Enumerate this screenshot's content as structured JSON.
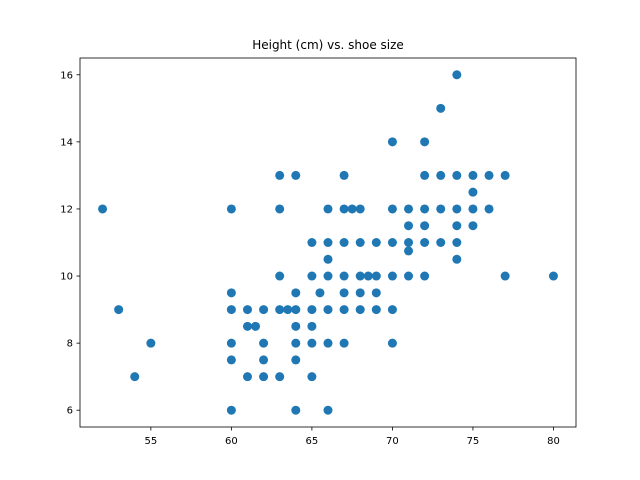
{
  "chart_data": {
    "type": "scatter",
    "title": "Height (cm) vs. shoe size",
    "xlabel": "",
    "ylabel": "",
    "xlim": [
      50.6,
      81.4
    ],
    "ylim": [
      5.5,
      16.5
    ],
    "xticks": [
      55,
      60,
      65,
      70,
      75,
      80
    ],
    "yticks": [
      6,
      8,
      10,
      12,
      14,
      16
    ],
    "grid": false,
    "marker_color": "#1f77b4",
    "points": [
      [
        52,
        12
      ],
      [
        53,
        9
      ],
      [
        54,
        7
      ],
      [
        55,
        8
      ],
      [
        60,
        12
      ],
      [
        60,
        9.5
      ],
      [
        60,
        9
      ],
      [
        60,
        8
      ],
      [
        60,
        7.5
      ],
      [
        60,
        6
      ],
      [
        61,
        9
      ],
      [
        61,
        8.5
      ],
      [
        61,
        7
      ],
      [
        61.5,
        8.5
      ],
      [
        62,
        9
      ],
      [
        62,
        8
      ],
      [
        62,
        7.5
      ],
      [
        62,
        7
      ],
      [
        63,
        13
      ],
      [
        63,
        12
      ],
      [
        63,
        10
      ],
      [
        63,
        9
      ],
      [
        63,
        7
      ],
      [
        63.5,
        9
      ],
      [
        64,
        13
      ],
      [
        64,
        9.5
      ],
      [
        64,
        9
      ],
      [
        64,
        8.5
      ],
      [
        64,
        8
      ],
      [
        64,
        7.5
      ],
      [
        64,
        6
      ],
      [
        65,
        11
      ],
      [
        65,
        10
      ],
      [
        65,
        9
      ],
      [
        65,
        8.5
      ],
      [
        65,
        8
      ],
      [
        65,
        7
      ],
      [
        65.5,
        9.5
      ],
      [
        66,
        12
      ],
      [
        66,
        11
      ],
      [
        66,
        10.5
      ],
      [
        66,
        10
      ],
      [
        66,
        9
      ],
      [
        66,
        8
      ],
      [
        66,
        6
      ],
      [
        67,
        13
      ],
      [
        67,
        12
      ],
      [
        67,
        11
      ],
      [
        67,
        10
      ],
      [
        67,
        9.5
      ],
      [
        67,
        9
      ],
      [
        67,
        8
      ],
      [
        67.5,
        12
      ],
      [
        68,
        12
      ],
      [
        68,
        11
      ],
      [
        68,
        10
      ],
      [
        68,
        9.5
      ],
      [
        68,
        9
      ],
      [
        68.5,
        10
      ],
      [
        69,
        11
      ],
      [
        69,
        10
      ],
      [
        69,
        9.5
      ],
      [
        69,
        9
      ],
      [
        70,
        14
      ],
      [
        70,
        12
      ],
      [
        70,
        11
      ],
      [
        70,
        10
      ],
      [
        70,
        9
      ],
      [
        70,
        8
      ],
      [
        71,
        12
      ],
      [
        71,
        11.5
      ],
      [
        71,
        11
      ],
      [
        71,
        10.75
      ],
      [
        71,
        10
      ],
      [
        72,
        14
      ],
      [
        72,
        13
      ],
      [
        72,
        12
      ],
      [
        72,
        11.5
      ],
      [
        72,
        11
      ],
      [
        72,
        10
      ],
      [
        73,
        15
      ],
      [
        73,
        13
      ],
      [
        73,
        12
      ],
      [
        73,
        11
      ],
      [
        74,
        16
      ],
      [
        74,
        13
      ],
      [
        74,
        12
      ],
      [
        74,
        11.5
      ],
      [
        74,
        11
      ],
      [
        74,
        10.5
      ],
      [
        75,
        13
      ],
      [
        75,
        12.5
      ],
      [
        75,
        12
      ],
      [
        75,
        11.5
      ],
      [
        76,
        13
      ],
      [
        76,
        12
      ],
      [
        77,
        13
      ],
      [
        77,
        10
      ],
      [
        80,
        10
      ]
    ]
  }
}
